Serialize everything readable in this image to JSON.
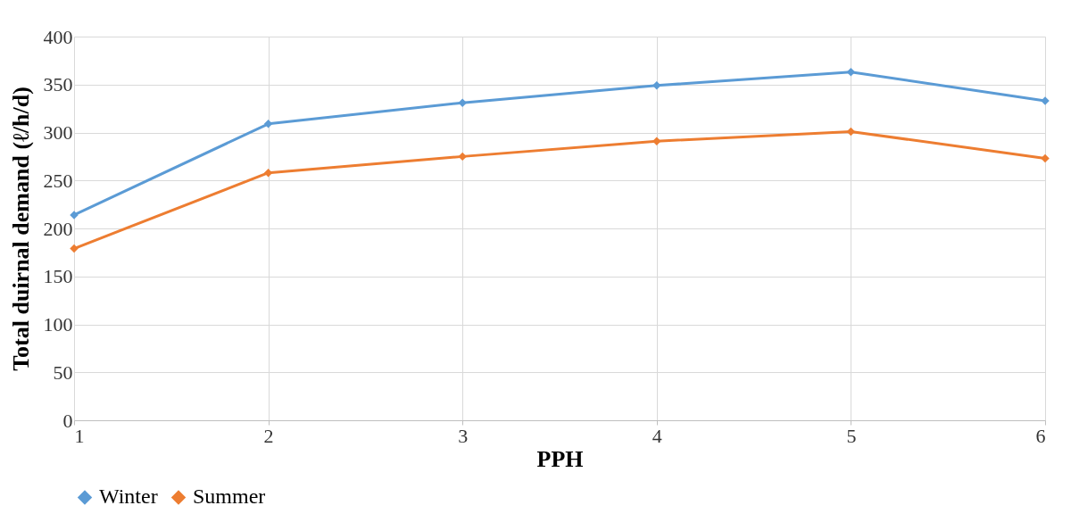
{
  "chart_data": {
    "type": "line",
    "xlabel": "PPH",
    "ylabel": "Total duirnal demand (ℓ/h/d)",
    "x": [
      1,
      2,
      3,
      4,
      5,
      6
    ],
    "series": [
      {
        "name": "Winter",
        "color": "#5b9bd5",
        "values": [
          214,
          309,
          331,
          349,
          363,
          333
        ]
      },
      {
        "name": "Summer",
        "color": "#ed7d31",
        "values": [
          179,
          258,
          275,
          291,
          301,
          273
        ]
      }
    ],
    "xlim": [
      1,
      6
    ],
    "xticks": [
      1,
      2,
      3,
      4,
      5,
      6
    ],
    "ylim": [
      0,
      400
    ],
    "yticks": [
      0,
      50,
      100,
      150,
      200,
      250,
      300,
      350,
      400
    ],
    "grid": true,
    "legend": "bottom",
    "marker": "diamond",
    "line_style": "solid"
  }
}
